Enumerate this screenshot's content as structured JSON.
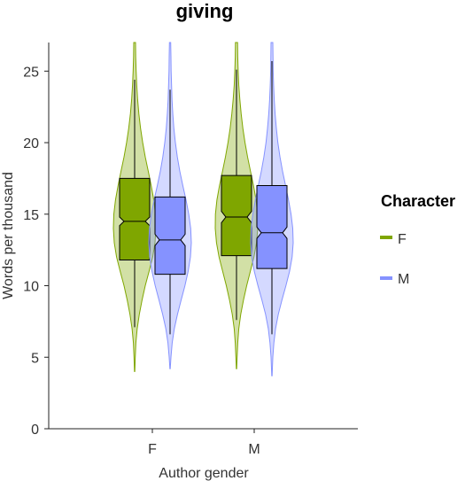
{
  "chart_data": {
    "type": "violin-boxplot",
    "title": "giving",
    "xlabel": "Author gender",
    "ylabel": "Words per thousand",
    "ylim": [
      0,
      27
    ],
    "yticks": [
      0,
      5,
      10,
      15,
      20,
      25
    ],
    "categories": [
      "F",
      "M"
    ],
    "legend": {
      "title": "Character",
      "position": "right",
      "entries": [
        {
          "label": "F",
          "color": "#7fa600"
        },
        {
          "label": "M",
          "color": "#8592ff"
        }
      ]
    },
    "grid": false,
    "groups": [
      {
        "author": "F",
        "character": "F",
        "color": "#7fa600",
        "box": {
          "q1": 11.8,
          "median": 14.5,
          "q3": 17.5,
          "notch_low": 14.2,
          "notch_high": 14.8,
          "whisker_low": 7.1,
          "whisker_high": 24.4
        },
        "violin": {
          "min": 4.0,
          "max": 27.0,
          "profile": [
            [
              4.0,
              0.01
            ],
            [
              5,
              0.03
            ],
            [
              6,
              0.06
            ],
            [
              7,
              0.12
            ],
            [
              8,
              0.22
            ],
            [
              9,
              0.35
            ],
            [
              10,
              0.5
            ],
            [
              11,
              0.68
            ],
            [
              12,
              0.85
            ],
            [
              13,
              0.96
            ],
            [
              14,
              1.0
            ],
            [
              15,
              0.98
            ],
            [
              16,
              0.9
            ],
            [
              17,
              0.78
            ],
            [
              18,
              0.64
            ],
            [
              19,
              0.5
            ],
            [
              20,
              0.38
            ],
            [
              21,
              0.28
            ],
            [
              22,
              0.2
            ],
            [
              23,
              0.14
            ],
            [
              24,
              0.1
            ],
            [
              25,
              0.07
            ],
            [
              26,
              0.05
            ],
            [
              27,
              0.04
            ]
          ]
        }
      },
      {
        "author": "F",
        "character": "M",
        "color": "#8592ff",
        "box": {
          "q1": 10.8,
          "median": 13.2,
          "q3": 16.2,
          "notch_low": 12.8,
          "notch_high": 13.6,
          "whisker_low": 6.6,
          "whisker_high": 23.7
        },
        "violin": {
          "min": 4.2,
          "max": 27.0,
          "profile": [
            [
              4.2,
              0.01
            ],
            [
              5,
              0.04
            ],
            [
              6,
              0.1
            ],
            [
              7,
              0.2
            ],
            [
              8,
              0.35
            ],
            [
              9,
              0.52
            ],
            [
              10,
              0.7
            ],
            [
              11,
              0.85
            ],
            [
              12,
              0.96
            ],
            [
              13,
              1.0
            ],
            [
              14,
              0.97
            ],
            [
              15,
              0.88
            ],
            [
              16,
              0.75
            ],
            [
              17,
              0.6
            ],
            [
              18,
              0.46
            ],
            [
              19,
              0.34
            ],
            [
              20,
              0.25
            ],
            [
              21,
              0.18
            ],
            [
              22,
              0.13
            ],
            [
              23,
              0.09
            ],
            [
              24,
              0.07
            ],
            [
              25,
              0.05
            ],
            [
              26,
              0.04
            ],
            [
              27,
              0.03
            ]
          ]
        }
      },
      {
        "author": "M",
        "character": "F",
        "color": "#7fa600",
        "box": {
          "q1": 12.1,
          "median": 14.8,
          "q3": 17.7,
          "notch_low": 14.4,
          "notch_high": 15.2,
          "whisker_low": 7.6,
          "whisker_high": 25.1
        },
        "violin": {
          "min": 4.2,
          "max": 27.0,
          "profile": [
            [
              4.2,
              0.01
            ],
            [
              5,
              0.03
            ],
            [
              6,
              0.06
            ],
            [
              7,
              0.11
            ],
            [
              8,
              0.2
            ],
            [
              9,
              0.33
            ],
            [
              10,
              0.48
            ],
            [
              11,
              0.65
            ],
            [
              12,
              0.82
            ],
            [
              13,
              0.94
            ],
            [
              14,
              1.0
            ],
            [
              15,
              0.99
            ],
            [
              16,
              0.92
            ],
            [
              17,
              0.8
            ],
            [
              18,
              0.66
            ],
            [
              19,
              0.52
            ],
            [
              20,
              0.4
            ],
            [
              21,
              0.3
            ],
            [
              22,
              0.22
            ],
            [
              23,
              0.16
            ],
            [
              24,
              0.11
            ],
            [
              25,
              0.08
            ],
            [
              26,
              0.06
            ],
            [
              27,
              0.05
            ]
          ]
        }
      },
      {
        "author": "M",
        "character": "M",
        "color": "#8592ff",
        "box": {
          "q1": 11.2,
          "median": 13.7,
          "q3": 17.0,
          "notch_low": 13.3,
          "notch_high": 14.1,
          "whisker_low": 6.6,
          "whisker_high": 25.7
        },
        "violin": {
          "min": 3.7,
          "max": 27.0,
          "profile": [
            [
              3.7,
              0.01
            ],
            [
              5,
              0.04
            ],
            [
              6,
              0.09
            ],
            [
              7,
              0.17
            ],
            [
              8,
              0.3
            ],
            [
              9,
              0.47
            ],
            [
              10,
              0.66
            ],
            [
              11,
              0.83
            ],
            [
              12,
              0.95
            ],
            [
              13,
              1.0
            ],
            [
              14,
              0.98
            ],
            [
              15,
              0.9
            ],
            [
              16,
              0.78
            ],
            [
              17,
              0.64
            ],
            [
              18,
              0.5
            ],
            [
              19,
              0.38
            ],
            [
              20,
              0.28
            ],
            [
              21,
              0.21
            ],
            [
              22,
              0.15
            ],
            [
              23,
              0.11
            ],
            [
              24,
              0.08
            ],
            [
              25,
              0.06
            ],
            [
              26,
              0.05
            ],
            [
              27,
              0.04
            ]
          ]
        }
      }
    ]
  }
}
